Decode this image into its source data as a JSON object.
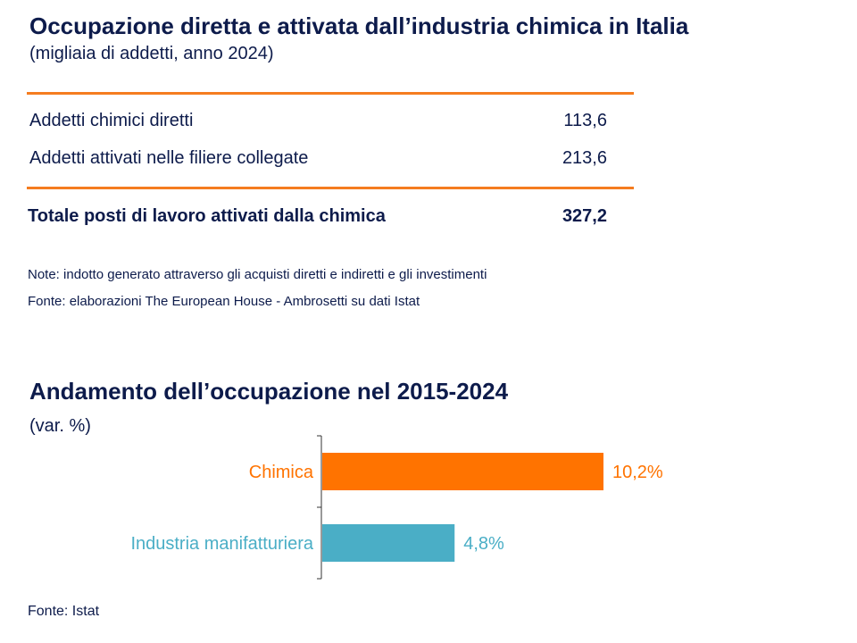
{
  "table": {
    "title": "Occupazione diretta e attivata dall’industria chimica in Italia",
    "subtitle": "(migliaia di addetti, anno 2024)",
    "rows": [
      {
        "label": "Addetti chimici diretti",
        "value": "113,6"
      },
      {
        "label": "Addetti attivati nelle filiere collegate",
        "value": "213,6"
      }
    ],
    "total": {
      "label": "Totale posti di lavoro attivati dalla chimica",
      "value": "327,2"
    },
    "note": "Note: indotto generato attraverso gli acquisti diretti e indiretti e gli investimenti",
    "source": "Fonte: elaborazioni The European House - Ambrosetti su dati Istat",
    "rule_color": "#f57c1f"
  },
  "chart_data": {
    "type": "bar",
    "orientation": "horizontal",
    "title": "Andamento dell’occupazione nel 2015-2024",
    "subtitle": "(var. %)",
    "categories": [
      "Chimica",
      "Industria manifatturiera"
    ],
    "values": [
      10.2,
      4.8
    ],
    "value_labels": [
      "10,2%",
      "4,8%"
    ],
    "colors": [
      "#ff7300",
      "#4aaec6"
    ],
    "xlim": [
      0,
      10.2
    ],
    "grid": false,
    "source": "Fonte: Istat"
  }
}
